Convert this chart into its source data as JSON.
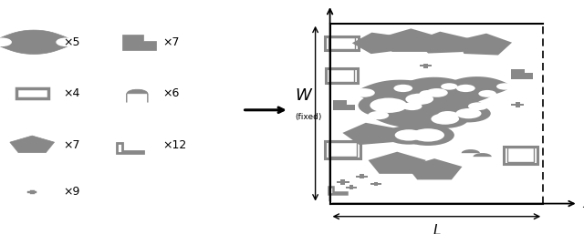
{
  "fig_width": 6.4,
  "fig_height": 2.57,
  "dpi": 100,
  "bg_color": "#ffffff",
  "gray": "#888888",
  "dark_gray": "#666666",
  "edge_color": "#555555",
  "lw": 0.8,
  "BL": 0.565,
  "BB": 0.13,
  "BW": 0.365,
  "BH": 0.77
}
